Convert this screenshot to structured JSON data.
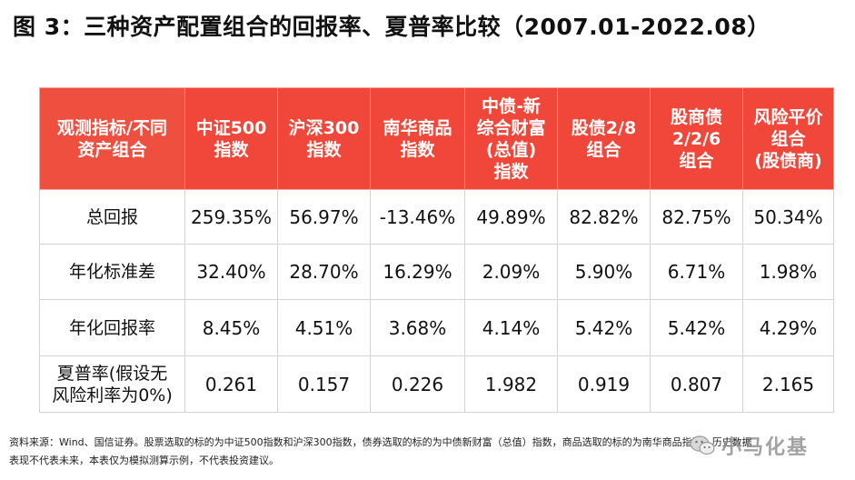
{
  "title": "图 3：三种资产配置组合的回报率、夏普率比较（2007.01-2022.08）",
  "table": {
    "headers": [
      [
        "观测指标/不同",
        "资产组合"
      ],
      [
        "中证500",
        "指数"
      ],
      [
        "沪深300",
        "指数"
      ],
      [
        "南华商品",
        "指数"
      ],
      [
        "中债-新",
        "综合财富",
        "(总值)",
        "指数"
      ],
      [
        "股债2/8",
        "组合"
      ],
      [
        "股商债",
        "2/2/6",
        "组合"
      ],
      [
        "风险平价",
        "组合",
        "(股债商)"
      ]
    ],
    "rows": [
      {
        "label": [
          "总回报"
        ],
        "values": [
          "259.35%",
          "56.97%",
          "-13.46%",
          "49.89%",
          "82.82%",
          "82.75%",
          "50.34%"
        ]
      },
      {
        "label": [
          "年化标准差"
        ],
        "values": [
          "32.40%",
          "28.70%",
          "16.29%",
          "2.09%",
          "5.90%",
          "6.71%",
          "1.98%"
        ]
      },
      {
        "label": [
          "年化回报率"
        ],
        "values": [
          "8.45%",
          "4.51%",
          "3.68%",
          "4.14%",
          "5.42%",
          "5.42%",
          "4.29%"
        ]
      },
      {
        "label": [
          "夏普率(假设无",
          "风险利率为0%)"
        ],
        "values": [
          "0.261",
          "0.157",
          "0.226",
          "1.982",
          "0.919",
          "0.807",
          "2.165"
        ]
      }
    ]
  },
  "notes": {
    "line1": "资料来源：Wind、国信证券。股票选取的标的为中证500指数和沪深300指数，债券选取的标的为中债新财富（总值）指数，商品选取的标的为南华商品指数。历史数据",
    "line2": "表现不代表未来，本表仅为模拟测算示例，不代表投资建议。"
  },
  "watermark": {
    "text": "小马化基",
    "icon": "wechat-icon"
  },
  "colors": {
    "header_bg": "#f0473a",
    "header_text": "#ffffff",
    "grid": "#d4d4d4"
  }
}
